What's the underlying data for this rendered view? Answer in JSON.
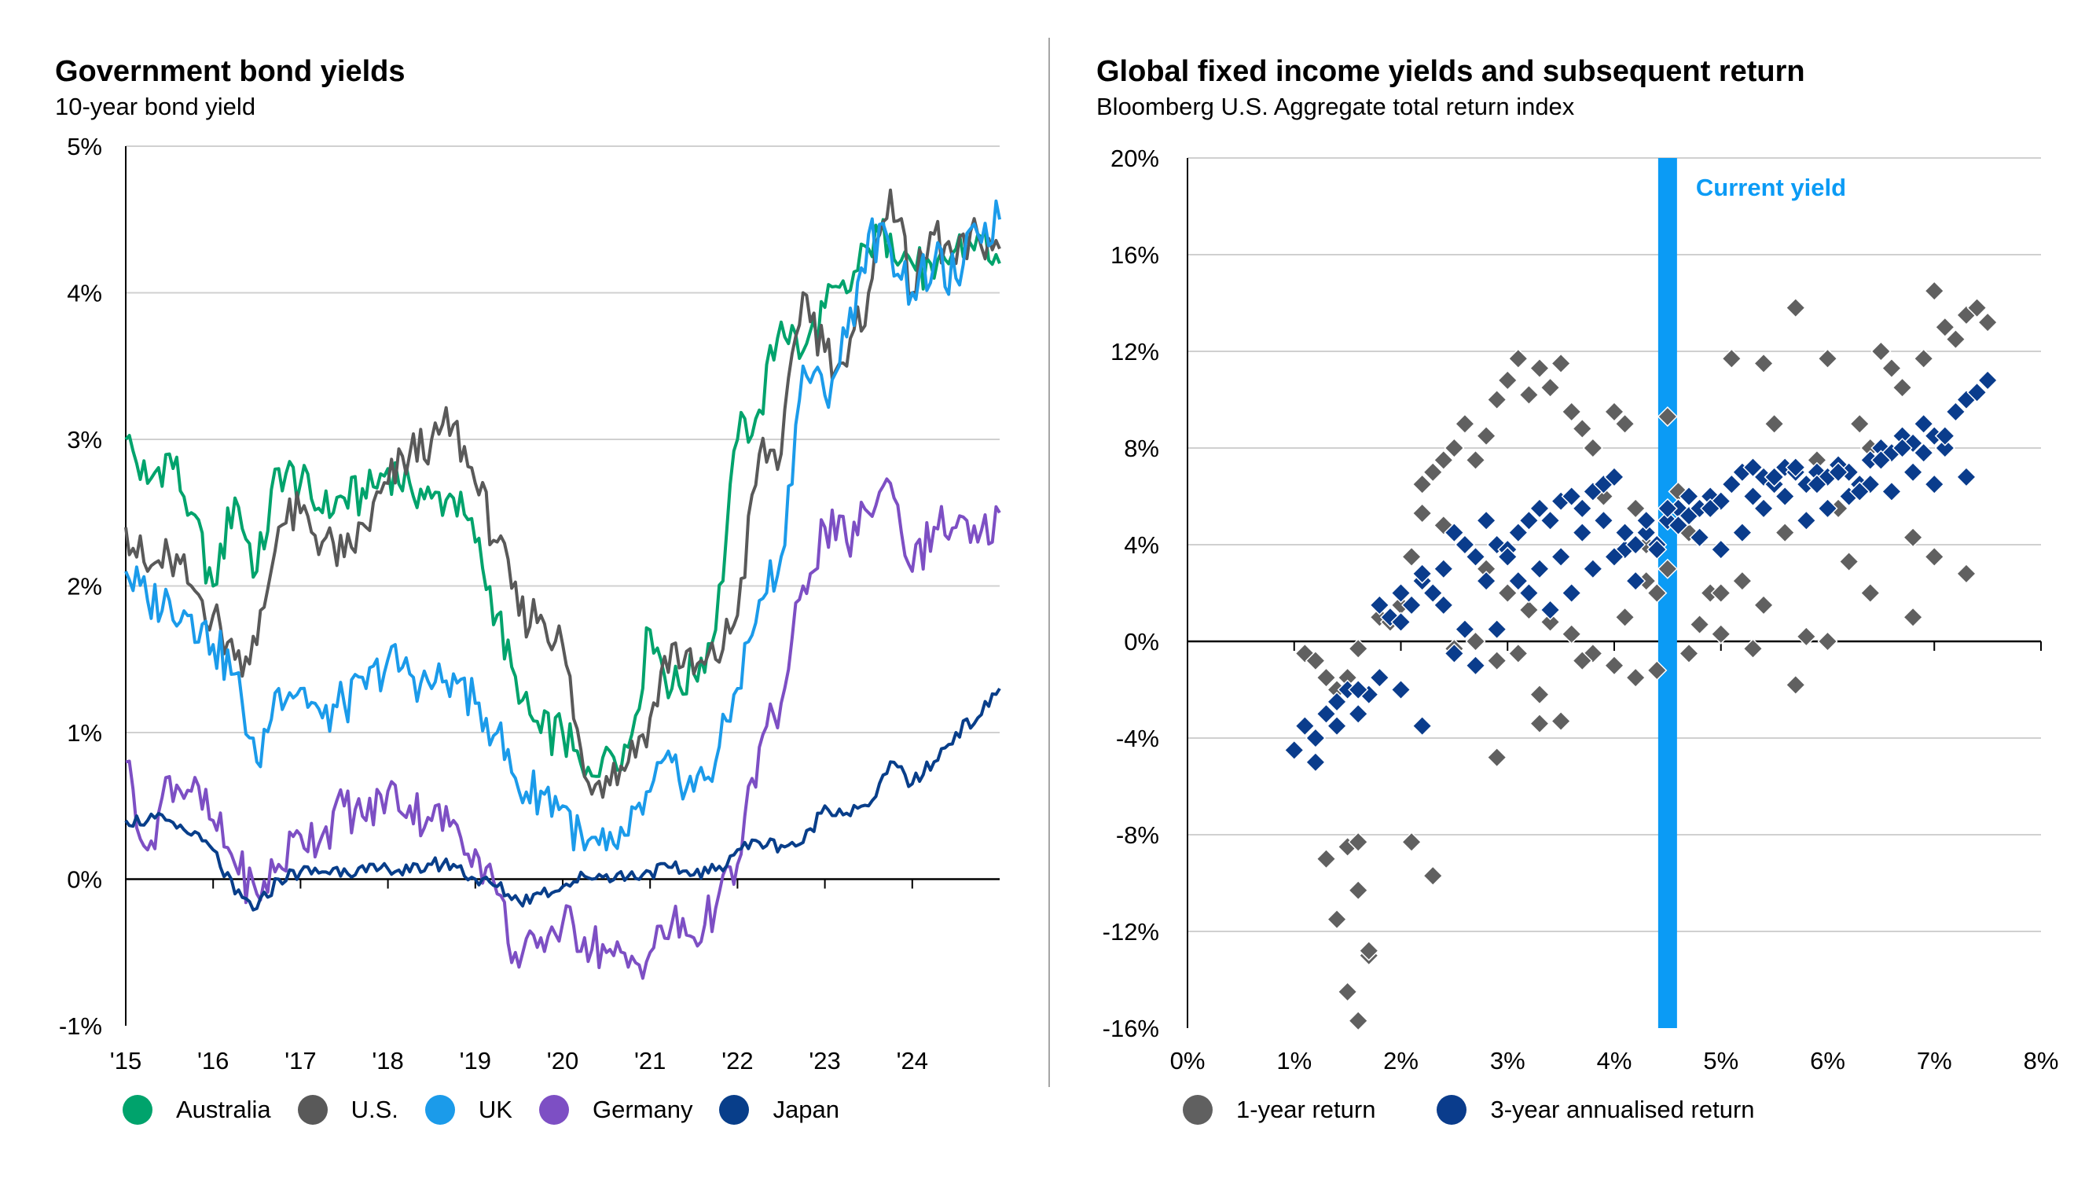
{
  "chart_data": [
    {
      "type": "line",
      "title": "Government bond yields",
      "subtitle": "10-year bond yield",
      "x_tick_labels": [
        "'15",
        "'16",
        "'17",
        "'18",
        "'19",
        "'20",
        "'21",
        "'22",
        "'23",
        "'24"
      ],
      "x_tick_values": [
        2015,
        2016,
        2017,
        2018,
        2019,
        2020,
        2021,
        2022,
        2023,
        2024
      ],
      "xlim": [
        2015,
        2025
      ],
      "y_tick_labels": [
        "-1%",
        "0%",
        "1%",
        "2%",
        "3%",
        "4%",
        "5%"
      ],
      "y_tick_values": [
        -1,
        0,
        1,
        2,
        3,
        4,
        5
      ],
      "ylim": [
        -1,
        5
      ],
      "series": [
        {
          "name": "Australia",
          "color": "#00a36c",
          "x": [
            2015.0,
            2015.25,
            2015.5,
            2015.75,
            2016.0,
            2016.25,
            2016.5,
            2016.75,
            2017.0,
            2017.25,
            2017.5,
            2017.75,
            2018.0,
            2018.25,
            2018.5,
            2018.75,
            2019.0,
            2019.25,
            2019.5,
            2019.75,
            2020.0,
            2020.25,
            2020.5,
            2020.75,
            2021.0,
            2021.25,
            2021.5,
            2021.75,
            2022.0,
            2022.25,
            2022.5,
            2022.75,
            2023.0,
            2023.25,
            2023.5,
            2023.75,
            2024.0,
            2024.25,
            2024.5,
            2024.75,
            2025.0
          ],
          "values": [
            3.0,
            2.7,
            2.9,
            2.5,
            2.0,
            2.6,
            2.1,
            2.8,
            2.7,
            2.5,
            2.6,
            2.6,
            2.8,
            2.7,
            2.6,
            2.6,
            2.3,
            1.8,
            1.2,
            1.0,
            1.0,
            0.7,
            0.9,
            0.9,
            1.7,
            1.3,
            1.4,
            1.7,
            3.0,
            3.2,
            3.8,
            3.6,
            3.9,
            4.0,
            4.3,
            4.4,
            4.2,
            4.1,
            4.3,
            4.4,
            4.2
          ]
        },
        {
          "name": "U.S.",
          "color": "#595959",
          "x": [
            2015.0,
            2015.25,
            2015.5,
            2015.75,
            2016.0,
            2016.25,
            2016.5,
            2016.75,
            2017.0,
            2017.25,
            2017.5,
            2017.75,
            2018.0,
            2018.25,
            2018.5,
            2018.75,
            2019.0,
            2019.25,
            2019.5,
            2019.75,
            2020.0,
            2020.25,
            2020.5,
            2020.75,
            2021.0,
            2021.25,
            2021.5,
            2021.75,
            2022.0,
            2022.25,
            2022.5,
            2022.75,
            2023.0,
            2023.25,
            2023.5,
            2023.75,
            2024.0,
            2024.25,
            2024.5,
            2024.75,
            2025.0
          ],
          "values": [
            2.4,
            2.1,
            2.2,
            2.0,
            1.8,
            1.5,
            1.6,
            2.4,
            2.5,
            2.3,
            2.2,
            2.4,
            2.7,
            2.9,
            3.0,
            3.1,
            2.7,
            2.3,
            1.8,
            1.8,
            1.6,
            0.7,
            0.7,
            0.8,
            1.1,
            1.6,
            1.4,
            1.5,
            1.8,
            2.9,
            2.9,
            4.0,
            3.6,
            3.5,
            4.0,
            4.7,
            4.0,
            4.4,
            4.2,
            4.4,
            4.3
          ]
        },
        {
          "name": "UK",
          "color": "#1b9bea",
          "x": [
            2015.0,
            2015.25,
            2015.5,
            2015.75,
            2016.0,
            2016.25,
            2016.5,
            2016.75,
            2017.0,
            2017.25,
            2017.5,
            2017.75,
            2018.0,
            2018.25,
            2018.5,
            2018.75,
            2019.0,
            2019.25,
            2019.5,
            2019.75,
            2020.0,
            2020.25,
            2020.5,
            2020.75,
            2021.0,
            2021.25,
            2021.5,
            2021.75,
            2022.0,
            2022.25,
            2022.5,
            2022.75,
            2023.0,
            2023.25,
            2023.5,
            2023.75,
            2024.0,
            2024.25,
            2024.5,
            2024.75,
            2025.0
          ],
          "values": [
            2.1,
            1.9,
            1.9,
            1.8,
            1.6,
            1.4,
            0.8,
            1.3,
            1.3,
            1.1,
            1.2,
            1.3,
            1.5,
            1.4,
            1.3,
            1.4,
            1.2,
            1.0,
            0.6,
            0.6,
            0.5,
            0.2,
            0.2,
            0.3,
            0.6,
            0.8,
            0.6,
            0.8,
            1.3,
            1.9,
            2.2,
            3.5,
            3.3,
            3.7,
            4.4,
            4.3,
            4.0,
            4.2,
            4.1,
            4.4,
            4.5
          ]
        },
        {
          "name": "Germany",
          "color": "#7d4fc4",
          "x": [
            2015.0,
            2015.25,
            2015.5,
            2015.75,
            2016.0,
            2016.25,
            2016.5,
            2016.75,
            2017.0,
            2017.25,
            2017.5,
            2017.75,
            2018.0,
            2018.25,
            2018.5,
            2018.75,
            2019.0,
            2019.25,
            2019.5,
            2019.75,
            2020.0,
            2020.25,
            2020.5,
            2020.75,
            2021.0,
            2021.25,
            2021.5,
            2021.75,
            2022.0,
            2022.25,
            2022.5,
            2022.75,
            2023.0,
            2023.25,
            2023.5,
            2023.75,
            2024.0,
            2024.25,
            2024.5,
            2024.75,
            2025.0
          ],
          "values": [
            0.8,
            0.2,
            0.7,
            0.6,
            0.4,
            0.1,
            -0.1,
            0.1,
            0.3,
            0.3,
            0.5,
            0.4,
            0.6,
            0.5,
            0.4,
            0.4,
            0.2,
            -0.1,
            -0.6,
            -0.4,
            -0.3,
            -0.4,
            -0.5,
            -0.6,
            -0.5,
            -0.3,
            -0.4,
            -0.2,
            0.1,
            0.9,
            1.2,
            2.0,
            2.4,
            2.3,
            2.5,
            2.7,
            2.1,
            2.4,
            2.4,
            2.3,
            2.5
          ]
        },
        {
          "name": "Japan",
          "color": "#083e8a",
          "x": [
            2015.0,
            2015.25,
            2015.5,
            2015.75,
            2016.0,
            2016.25,
            2016.5,
            2016.75,
            2017.0,
            2017.25,
            2017.5,
            2017.75,
            2018.0,
            2018.25,
            2018.5,
            2018.75,
            2019.0,
            2019.25,
            2019.5,
            2019.75,
            2020.0,
            2020.25,
            2020.5,
            2020.75,
            2021.0,
            2021.25,
            2021.5,
            2021.75,
            2022.0,
            2022.25,
            2022.5,
            2022.75,
            2023.0,
            2023.25,
            2023.5,
            2023.75,
            2024.0,
            2024.25,
            2024.5,
            2024.75,
            2025.0
          ],
          "values": [
            0.4,
            0.4,
            0.4,
            0.3,
            0.2,
            -0.1,
            -0.2,
            0.0,
            0.05,
            0.05,
            0.07,
            0.05,
            0.07,
            0.05,
            0.1,
            0.1,
            0.0,
            -0.05,
            -0.15,
            -0.1,
            -0.05,
            0.02,
            0.03,
            0.02,
            0.05,
            0.08,
            0.03,
            0.06,
            0.2,
            0.25,
            0.23,
            0.25,
            0.5,
            0.45,
            0.5,
            0.8,
            0.65,
            0.8,
            1.0,
            1.1,
            1.3
          ]
        }
      ]
    },
    {
      "type": "scatter",
      "title": "Global fixed income yields and subsequent return",
      "subtitle": "Bloomberg U.S. Aggregate total return index",
      "x_tick_labels": [
        "0%",
        "1%",
        "2%",
        "3%",
        "4%",
        "5%",
        "6%",
        "7%",
        "8%"
      ],
      "x_tick_values": [
        0,
        1,
        2,
        3,
        4,
        5,
        6,
        7,
        8
      ],
      "xlim": [
        0,
        8
      ],
      "y_tick_labels": [
        "-16%",
        "-12%",
        "-8%",
        "-4%",
        "0%",
        "4%",
        "8%",
        "12%",
        "16%",
        "20%"
      ],
      "y_tick_values": [
        -16,
        -12,
        -8,
        -4,
        0,
        4,
        8,
        12,
        16,
        20
      ],
      "ylim": [
        -16,
        20
      ],
      "current_yield": {
        "label": "Current yield",
        "value": 4.5,
        "color": "#0b9bf5"
      },
      "series": [
        {
          "name": "1-year return",
          "color": "#606060",
          "x": [
            1.1,
            1.2,
            1.3,
            1.4,
            1.5,
            1.6,
            1.7,
            1.5,
            1.6,
            1.7,
            1.8,
            1.9,
            2.0,
            2.1,
            2.2,
            2.3,
            2.4,
            2.5,
            2.6,
            2.7,
            2.8,
            2.9,
            3.0,
            3.1,
            3.2,
            3.3,
            3.4,
            3.5,
            3.6,
            3.7,
            3.8,
            3.9,
            4.0,
            4.1,
            4.2,
            4.3,
            4.4,
            4.5,
            4.6,
            4.7,
            4.8,
            4.9,
            5.0,
            5.1,
            5.2,
            5.3,
            5.4,
            5.5,
            5.6,
            5.7,
            5.8,
            5.9,
            6.0,
            6.1,
            6.2,
            6.3,
            6.4,
            6.5,
            6.6,
            6.7,
            6.8,
            6.9,
            7.0,
            7.1,
            7.2,
            7.3,
            7.4,
            7.5,
            2.2,
            2.4,
            2.6,
            2.8,
            3.0,
            3.2,
            3.4,
            3.6,
            3.8,
            4.0,
            4.2,
            4.4,
            2.5,
            2.7,
            2.9,
            3.1,
            3.3,
            3.5,
            3.7,
            4.1,
            4.3,
            4.5,
            4.7,
            5.0,
            5.4,
            5.7,
            6.0,
            6.4,
            6.8,
            7.0,
            7.3,
            1.3,
            1.6,
            2.1,
            2.3,
            2.9,
            3.3,
            1.4,
            1.7,
            1.5,
            1.6
          ],
          "values": [
            -0.5,
            -0.8,
            -1.5,
            -2.0,
            -8.5,
            -10.3,
            -13.0,
            -14.5,
            -15.7,
            -12.8,
            1.0,
            0.8,
            1.5,
            3.5,
            6.5,
            7.0,
            7.5,
            8.0,
            9.0,
            7.5,
            8.5,
            10.0,
            10.8,
            11.7,
            10.2,
            11.3,
            10.5,
            11.5,
            9.5,
            8.8,
            8.0,
            6.0,
            9.5,
            9.0,
            5.5,
            4.0,
            2.0,
            9.3,
            6.2,
            4.5,
            0.7,
            2.0,
            0.3,
            11.7,
            2.5,
            -0.3,
            11.5,
            9.0,
            4.5,
            13.8,
            0.2,
            7.5,
            11.7,
            5.5,
            3.3,
            9.0,
            8.0,
            12.0,
            11.3,
            10.5,
            4.3,
            11.7,
            14.5,
            13.0,
            12.5,
            13.5,
            13.8,
            13.2,
            5.3,
            4.8,
            4.0,
            3.0,
            2.0,
            1.3,
            0.8,
            0.3,
            -0.5,
            -1.0,
            -1.5,
            -1.2,
            -0.3,
            0.0,
            -0.8,
            -0.5,
            -2.2,
            -3.3,
            -0.8,
            1.0,
            2.5,
            3.0,
            -0.5,
            2.0,
            1.5,
            -1.8,
            0.0,
            2.0,
            1.0,
            3.5,
            2.8,
            -9.0,
            -8.3,
            -8.3,
            -9.7,
            -4.8,
            -3.4,
            -11.5,
            -12.8,
            -1.5,
            -0.3
          ]
        },
        {
          "name": "3-year annualised return",
          "color": "#0a3c8c",
          "x": [
            1.0,
            1.1,
            1.2,
            1.3,
            1.4,
            1.5,
            1.6,
            1.7,
            1.8,
            1.9,
            2.0,
            2.1,
            2.2,
            2.3,
            2.4,
            2.5,
            2.6,
            2.7,
            2.8,
            2.9,
            3.0,
            3.1,
            3.2,
            3.3,
            3.4,
            3.5,
            3.6,
            3.7,
            3.8,
            3.9,
            4.0,
            4.1,
            4.2,
            4.3,
            4.4,
            4.5,
            4.6,
            4.7,
            4.8,
            4.9,
            5.0,
            5.1,
            5.2,
            5.3,
            5.4,
            5.5,
            5.6,
            5.7,
            5.8,
            5.9,
            6.0,
            6.1,
            6.2,
            6.3,
            6.4,
            6.5,
            6.6,
            6.7,
            6.8,
            6.9,
            7.0,
            7.1,
            7.2,
            7.3,
            7.4,
            7.5,
            2.0,
            2.2,
            2.4,
            2.6,
            2.8,
            3.0,
            3.2,
            3.4,
            3.6,
            3.8,
            4.0,
            4.2,
            4.4,
            4.6,
            4.8,
            5.0,
            5.2,
            5.4,
            5.6,
            5.8,
            6.0,
            6.2,
            6.4,
            6.6,
            6.8,
            7.0,
            1.2,
            1.4,
            1.6,
            1.8,
            2.0,
            2.2,
            2.5,
            2.7,
            2.9,
            3.1,
            3.3,
            3.5,
            3.7,
            3.9,
            4.1,
            4.3,
            4.5,
            4.7,
            4.9,
            5.1,
            5.3,
            5.5,
            5.7,
            5.9,
            6.1,
            6.3,
            6.5,
            6.7,
            6.9,
            7.1,
            7.3
          ],
          "values": [
            -4.5,
            -3.5,
            -4.0,
            -3.0,
            -2.5,
            -2.0,
            -3.0,
            -2.2,
            -1.5,
            1.0,
            2.0,
            1.5,
            2.5,
            2.0,
            3.0,
            4.5,
            4.0,
            3.5,
            5.0,
            4.0,
            3.8,
            4.5,
            5.0,
            5.5,
            5.0,
            5.8,
            6.0,
            5.5,
            6.2,
            6.5,
            6.8,
            3.8,
            4.0,
            4.5,
            4.0,
            5.0,
            5.5,
            5.2,
            5.5,
            6.0,
            5.8,
            6.5,
            7.0,
            7.2,
            6.8,
            6.5,
            7.2,
            7.0,
            6.5,
            7.0,
            6.8,
            7.3,
            7.0,
            6.5,
            7.5,
            8.0,
            7.8,
            8.5,
            8.2,
            9.0,
            8.5,
            8.0,
            9.5,
            10.0,
            10.3,
            10.8,
            0.8,
            2.8,
            1.5,
            0.5,
            2.5,
            3.5,
            2.0,
            1.3,
            2.0,
            3.0,
            3.5,
            2.5,
            3.8,
            4.8,
            4.3,
            3.8,
            4.5,
            5.5,
            6.0,
            5.0,
            5.5,
            6.0,
            6.5,
            6.2,
            7.0,
            6.5,
            -5.0,
            -3.5,
            -2.0,
            1.5,
            -2.0,
            -3.5,
            -0.5,
            -1.0,
            0.5,
            2.5,
            3.0,
            3.5,
            4.5,
            5.0,
            4.5,
            5.0,
            5.5,
            6.0,
            5.5,
            6.5,
            6.0,
            6.8,
            7.2,
            6.5,
            7.0,
            6.2,
            7.5,
            8.0,
            7.8,
            8.5,
            6.8
          ]
        }
      ]
    }
  ],
  "legend_left": [
    {
      "label": "Australia",
      "color": "#00a36c"
    },
    {
      "label": "U.S.",
      "color": "#595959"
    },
    {
      "label": "UK",
      "color": "#1b9bea"
    },
    {
      "label": "Germany",
      "color": "#7d4fc4"
    },
    {
      "label": "Japan",
      "color": "#083e8a"
    }
  ],
  "legend_right": [
    {
      "label": "1-year return",
      "color": "#606060"
    },
    {
      "label": "3-year annualised return",
      "color": "#0a3c8c"
    }
  ]
}
